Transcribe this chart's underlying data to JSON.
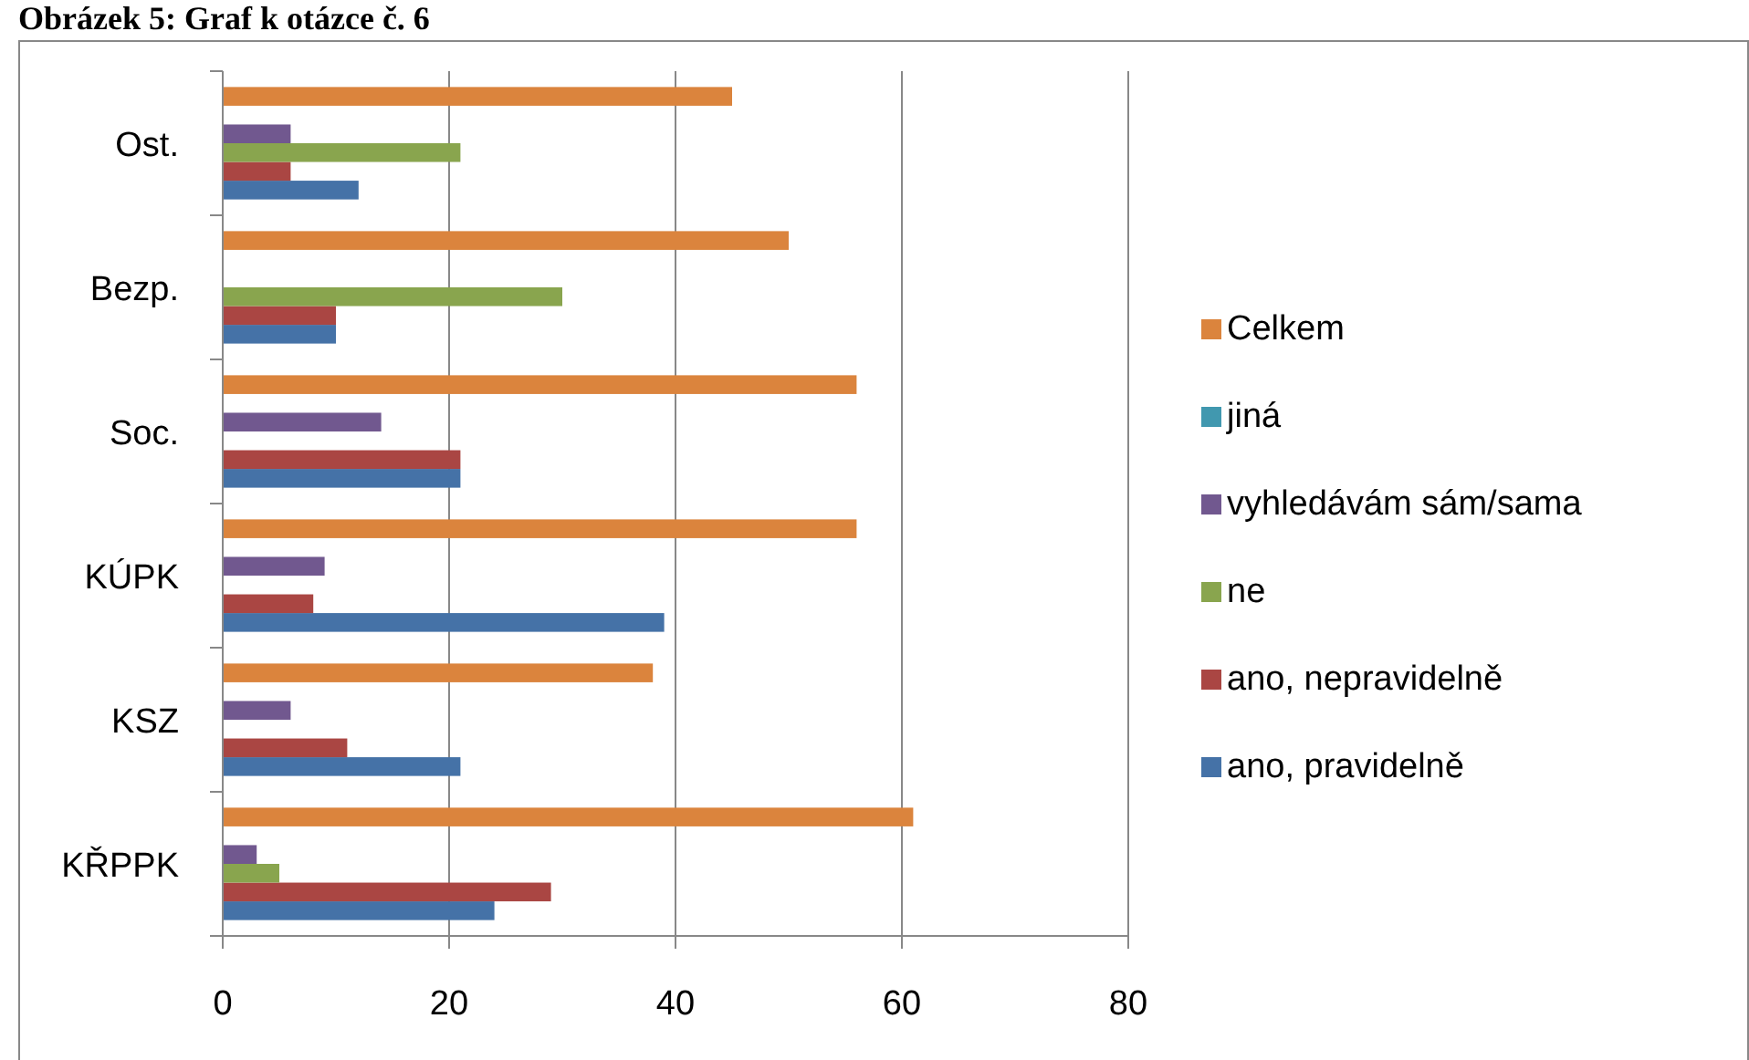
{
  "chart_data": {
    "type": "bar",
    "orientation": "horizontal",
    "title": "Obrázek 5: Graf k otázce č. 6",
    "categories": [
      "Ost.",
      "Bezp.",
      "Soc.",
      "KÚPK",
      "KSZ",
      "KŘPPK"
    ],
    "series": [
      {
        "name": "ano, pravidelně",
        "color": "#4572a7",
        "values": [
          12,
          10,
          21,
          39,
          21,
          24
        ]
      },
      {
        "name": "ano, nepravidelně",
        "color": "#aa4643",
        "values": [
          6,
          10,
          21,
          8,
          11,
          29
        ]
      },
      {
        "name": "ne",
        "color": "#89a54e",
        "values": [
          21,
          30,
          0,
          0,
          0,
          5
        ]
      },
      {
        "name": "vyhledávám sám/sama",
        "color": "#71588f",
        "values": [
          6,
          0,
          14,
          9,
          6,
          3
        ]
      },
      {
        "name": "jiná",
        "color": "#4198af",
        "values": [
          0,
          0,
          0,
          0,
          0,
          0
        ]
      },
      {
        "name": "Celkem",
        "color": "#db843d",
        "values": [
          45,
          50,
          56,
          56,
          38,
          61
        ]
      }
    ],
    "xlim": [
      0,
      80
    ],
    "xticks": [
      0,
      20,
      40,
      60,
      80
    ],
    "grid": "x",
    "legend": "right"
  }
}
